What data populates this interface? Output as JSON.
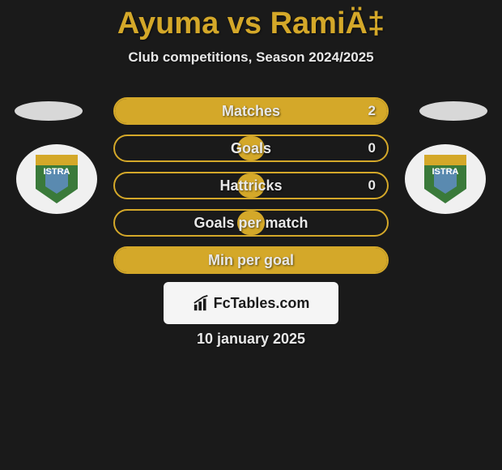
{
  "title": "Ayuma vs RamiÄ‡",
  "subtitle": "Club competitions, Season 2024/2025",
  "date": "10 january 2025",
  "badge_text": "ISTRA",
  "logo_text": "FcTables.com",
  "colors": {
    "accent": "#d4a829",
    "background": "#1a1a1a",
    "text_light": "#e8e8e8",
    "logo_bg": "#f5f5f5",
    "logo_text": "#1a1a1a",
    "badge_bg": "#f0f0f0",
    "badge_green": "#3a7a3a",
    "badge_blue": "#5a8ab0"
  },
  "stats": [
    {
      "label": "Matches",
      "value": "2",
      "fill_left_pct": 0,
      "fill_width_pct": 100
    },
    {
      "label": "Goals",
      "value": "0",
      "fill_left_pct": 45,
      "fill_width_pct": 10
    },
    {
      "label": "Hattricks",
      "value": "0",
      "fill_left_pct": 45,
      "fill_width_pct": 10
    },
    {
      "label": "Goals per match",
      "value": "",
      "fill_left_pct": 45,
      "fill_width_pct": 10
    },
    {
      "label": "Min per goal",
      "value": "",
      "fill_left_pct": 0,
      "fill_width_pct": 100
    }
  ]
}
